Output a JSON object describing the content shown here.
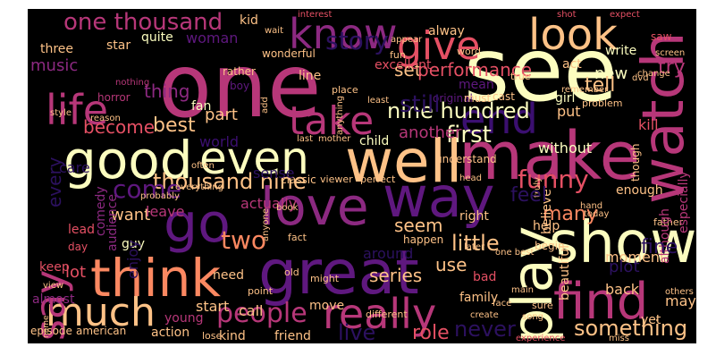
{
  "palette": {
    "c1": "#fcfdbf",
    "c2": "#fec287",
    "c3": "#fb8861",
    "c4": "#e55064",
    "c5": "#b73779",
    "c6": "#8c2981",
    "c7": "#5f187f",
    "c8": "#3b0f70",
    "c9": "#2c115f"
  },
  "words": [
    {
      "text": "one",
      "c": "c5"
    },
    {
      "text": "see",
      "c": "c1"
    },
    {
      "text": "make",
      "c": "c5"
    },
    {
      "text": "watch",
      "c": "c5"
    },
    {
      "text": "show",
      "c": "c1"
    },
    {
      "text": "love",
      "c": "c6"
    },
    {
      "text": "great",
      "c": "c7"
    },
    {
      "text": "think",
      "c": "c3"
    },
    {
      "text": "well",
      "c": "c2"
    },
    {
      "text": "good",
      "c": "c1"
    },
    {
      "text": "even",
      "c": "c1"
    },
    {
      "text": "go",
      "c": "c7"
    },
    {
      "text": "way",
      "c": "c7"
    },
    {
      "text": "play",
      "c": "c1"
    },
    {
      "text": "find",
      "c": "c5"
    },
    {
      "text": "really",
      "c": "c5"
    },
    {
      "text": "much",
      "c": "c2"
    },
    {
      "text": "life",
      "c": "c5"
    },
    {
      "text": "take",
      "c": "c5"
    },
    {
      "text": "give",
      "c": "c4"
    },
    {
      "text": "know",
      "c": "c6"
    },
    {
      "text": "look",
      "c": "c2"
    },
    {
      "text": "end",
      "c": "c8"
    },
    {
      "text": "say",
      "c": "c5"
    },
    {
      "text": "people",
      "c": "c5"
    },
    {
      "text": "one thousand",
      "c": "c5"
    },
    {
      "text": "nine hundred",
      "c": "c1"
    },
    {
      "text": "thousand nine",
      "c": "c2"
    },
    {
      "text": "come",
      "c": "c7"
    },
    {
      "text": "first",
      "c": "c1"
    },
    {
      "text": "set",
      "c": "c2"
    },
    {
      "text": "performance",
      "c": "c4"
    },
    {
      "text": "new",
      "c": "c1"
    },
    {
      "text": "try",
      "c": "c5"
    },
    {
      "text": "tell",
      "c": "c2"
    },
    {
      "text": "funny",
      "c": "c4"
    },
    {
      "text": "many",
      "c": "c3"
    },
    {
      "text": "little",
      "c": "c2"
    },
    {
      "text": "seem",
      "c": "c2"
    },
    {
      "text": "series",
      "c": "c2"
    },
    {
      "text": "use",
      "c": "c2"
    },
    {
      "text": "two",
      "c": "c3"
    },
    {
      "text": "role",
      "c": "c4"
    },
    {
      "text": "something",
      "c": "c2"
    },
    {
      "text": "best",
      "c": "c2"
    },
    {
      "text": "become",
      "c": "c4"
    },
    {
      "text": "music",
      "c": "c6"
    },
    {
      "text": "thing",
      "c": "c6"
    },
    {
      "text": "part",
      "c": "c2"
    },
    {
      "text": "another",
      "c": "c5"
    },
    {
      "text": "want",
      "c": "c2"
    },
    {
      "text": "lot",
      "c": "c4"
    },
    {
      "text": "start",
      "c": "c2"
    },
    {
      "text": "call",
      "c": "c2"
    },
    {
      "text": "action",
      "c": "c2"
    },
    {
      "text": "kind",
      "c": "c2"
    },
    {
      "text": "friend",
      "c": "c2"
    },
    {
      "text": "moment",
      "c": "c2"
    },
    {
      "text": "back",
      "c": "c2"
    },
    {
      "text": "may",
      "c": "c2"
    },
    {
      "text": "yet",
      "c": "c2"
    },
    {
      "text": "kill",
      "c": "c4"
    },
    {
      "text": "put",
      "c": "c2"
    },
    {
      "text": "without",
      "c": "c1"
    },
    {
      "text": "woman",
      "c": "c7"
    },
    {
      "text": "three",
      "c": "c2"
    },
    {
      "text": "quite",
      "c": "c1"
    },
    {
      "text": "star",
      "c": "c2"
    },
    {
      "text": "kid",
      "c": "c2"
    },
    {
      "text": "alway",
      "c": "c2"
    },
    {
      "text": "excellent",
      "c": "c4"
    },
    {
      "text": "mean",
      "c": "c7"
    },
    {
      "text": "write",
      "c": "c1"
    },
    {
      "text": "act",
      "c": "c2"
    },
    {
      "text": "guy",
      "c": "c1"
    },
    {
      "text": "lead",
      "c": "c4"
    },
    {
      "text": "day",
      "c": "c4"
    },
    {
      "text": "keep",
      "c": "c4"
    },
    {
      "text": "almost",
      "c": "c6"
    },
    {
      "text": "young",
      "c": "c5"
    },
    {
      "text": "episode",
      "c": "c2"
    },
    {
      "text": "american",
      "c": "c2"
    },
    {
      "text": "bad",
      "c": "c4"
    },
    {
      "text": "family",
      "c": "c2"
    },
    {
      "text": "right",
      "c": "c2"
    },
    {
      "text": "leave",
      "c": "c5"
    },
    {
      "text": "world",
      "c": "c8"
    },
    {
      "text": "child",
      "c": "c1"
    },
    {
      "text": "need",
      "c": "c2"
    },
    {
      "text": "fan",
      "c": "c1"
    },
    {
      "text": "rather",
      "c": "c2"
    },
    {
      "text": "girl",
      "c": "c1"
    },
    {
      "text": "begin",
      "c": "c2"
    },
    {
      "text": "help",
      "c": "c2"
    },
    {
      "text": "enough",
      "c": "c2"
    },
    {
      "text": "though",
      "c": "c2"
    },
    {
      "text": "move",
      "c": "c2"
    },
    {
      "text": "happen",
      "c": "c2"
    },
    {
      "text": "around",
      "c": "c9"
    },
    {
      "text": "actually",
      "c": "c5"
    },
    {
      "text": "line",
      "c": "c2"
    },
    {
      "text": "cast",
      "c": "c2"
    },
    {
      "text": "original",
      "c": "c7"
    },
    {
      "text": "understand",
      "c": "c2"
    },
    {
      "text": "classic",
      "c": "c2"
    },
    {
      "text": "viewer",
      "c": "c2"
    },
    {
      "text": "perfect",
      "c": "c2"
    },
    {
      "text": "must",
      "c": "c2"
    },
    {
      "text": "interest",
      "c": "c4"
    },
    {
      "text": "shot",
      "c": "c4"
    },
    {
      "text": "expect",
      "c": "c4"
    },
    {
      "text": "saw",
      "c": "c4"
    },
    {
      "text": "screen",
      "c": "c2"
    },
    {
      "text": "word",
      "c": "c2"
    },
    {
      "text": "wonderful",
      "c": "c2"
    },
    {
      "text": "boy",
      "c": "c7"
    },
    {
      "text": "change",
      "c": "c2"
    },
    {
      "text": "remember",
      "c": "c2"
    },
    {
      "text": "dvd",
      "c": "c2"
    },
    {
      "text": "fun",
      "c": "c2"
    },
    {
      "text": "place",
      "c": "c2"
    },
    {
      "text": "true",
      "c": "c2"
    },
    {
      "text": "problem",
      "c": "c2"
    },
    {
      "text": "horror",
      "c": "c5"
    },
    {
      "text": "style",
      "c": "c2"
    },
    {
      "text": "reason",
      "c": "c2"
    },
    {
      "text": "nothing",
      "c": "c5"
    },
    {
      "text": "last",
      "c": "c2"
    },
    {
      "text": "mother",
      "c": "c2"
    },
    {
      "text": "often",
      "c": "c2"
    },
    {
      "text": "everything",
      "c": "c2"
    },
    {
      "text": "today",
      "c": "c2"
    },
    {
      "text": "father",
      "c": "c2"
    },
    {
      "text": "later",
      "c": "c2"
    },
    {
      "text": "one best",
      "c": "c2"
    },
    {
      "text": "main",
      "c": "c2"
    },
    {
      "text": "face",
      "c": "c2"
    },
    {
      "text": "song",
      "c": "c2"
    },
    {
      "text": "experience",
      "c": "c4"
    },
    {
      "text": "miss",
      "c": "c2"
    },
    {
      "text": "sure",
      "c": "c2"
    },
    {
      "text": "others",
      "c": "c2"
    },
    {
      "text": "old",
      "c": "c2"
    },
    {
      "text": "point",
      "c": "c2"
    },
    {
      "text": "fact",
      "c": "c2"
    },
    {
      "text": "might",
      "c": "c2"
    },
    {
      "text": "different",
      "c": "c2"
    },
    {
      "text": "view",
      "c": "c2"
    },
    {
      "text": "name",
      "c": "c2"
    },
    {
      "text": "anyone",
      "c": "c2"
    },
    {
      "text": "book",
      "c": "c2"
    },
    {
      "text": "least",
      "c": "c2"
    },
    {
      "text": "anything",
      "c": "c2"
    },
    {
      "text": "create",
      "c": "c2"
    },
    {
      "text": "truly",
      "c": "c2"
    },
    {
      "text": "beautiful",
      "c": "c2"
    },
    {
      "text": "believe",
      "c": "c2"
    },
    {
      "text": "although",
      "c": "c5"
    },
    {
      "text": "especially",
      "c": "c5"
    },
    {
      "text": "comedy",
      "c": "c6"
    },
    {
      "text": "audience",
      "c": "c6"
    },
    {
      "text": "probably",
      "c": "c2"
    },
    {
      "text": "enjoy",
      "c": "c9"
    },
    {
      "text": "never",
      "c": "c9"
    },
    {
      "text": "still",
      "c": "c9"
    },
    {
      "text": "live",
      "c": "c9"
    },
    {
      "text": "add",
      "c": "c2"
    },
    {
      "text": "appear",
      "c": "c2"
    },
    {
      "text": "wait",
      "c": "c2"
    },
    {
      "text": "hand",
      "c": "c2"
    },
    {
      "text": "head",
      "c": "c2"
    },
    {
      "text": "lose",
      "c": "c2"
    },
    {
      "text": "story",
      "c": "c9"
    },
    {
      "text": "feel",
      "c": "c9"
    },
    {
      "text": "every",
      "c": "c9"
    },
    {
      "text": "fine",
      "c": "c9"
    },
    {
      "text": "sense",
      "c": "c9"
    },
    {
      "text": "plot",
      "c": "c9"
    },
    {
      "text": "care",
      "c": "c9"
    }
  ]
}
